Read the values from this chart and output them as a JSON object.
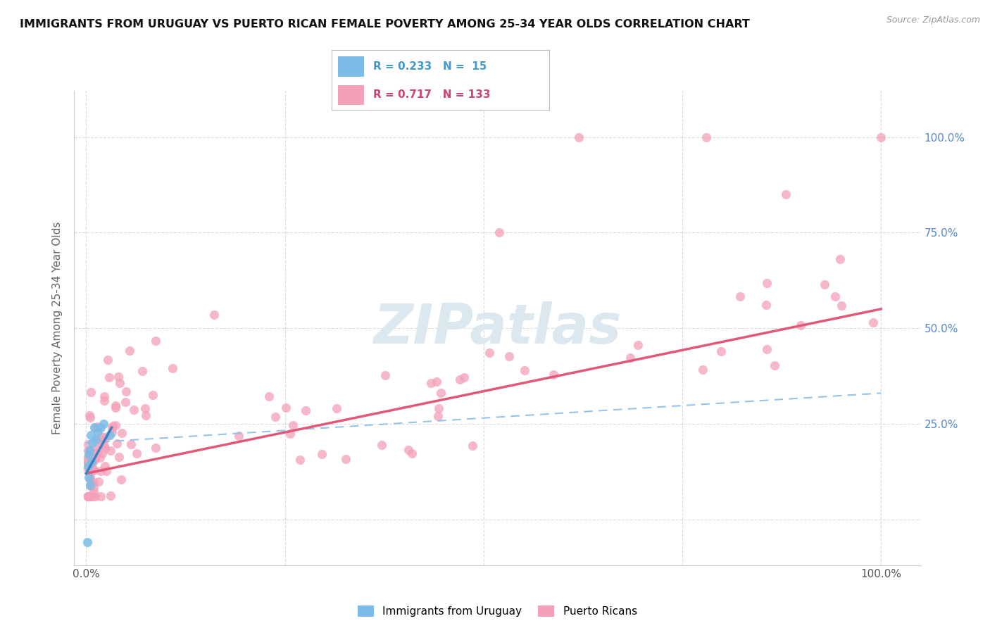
{
  "title": "IMMIGRANTS FROM URUGUAY VS PUERTO RICAN FEMALE POVERTY AMONG 25-34 YEAR OLDS CORRELATION CHART",
  "source": "Source: ZipAtlas.com",
  "ylabel": "Female Poverty Among 25-34 Year Olds",
  "blue_color": "#7bbde8",
  "pink_color": "#f4a0b8",
  "blue_line_color": "#3a7fc1",
  "pink_line_color": "#e05878",
  "blue_dash_color": "#8bbde8",
  "watermark_color": "#e0e8f0",
  "watermark_text": "ZIPatlas",
  "legend_r1": "R = 0.233",
  "legend_n1": "N =  15",
  "legend_r2": "R = 0.717",
  "legend_n2": "N = 133",
  "legend_text_blue": "#4499cc",
  "legend_text_pink": "#cc4477",
  "right_tick_color": "#5588cc",
  "bottom_legend_label1": "Immigrants from Uruguay",
  "bottom_legend_label2": "Puerto Ricans"
}
